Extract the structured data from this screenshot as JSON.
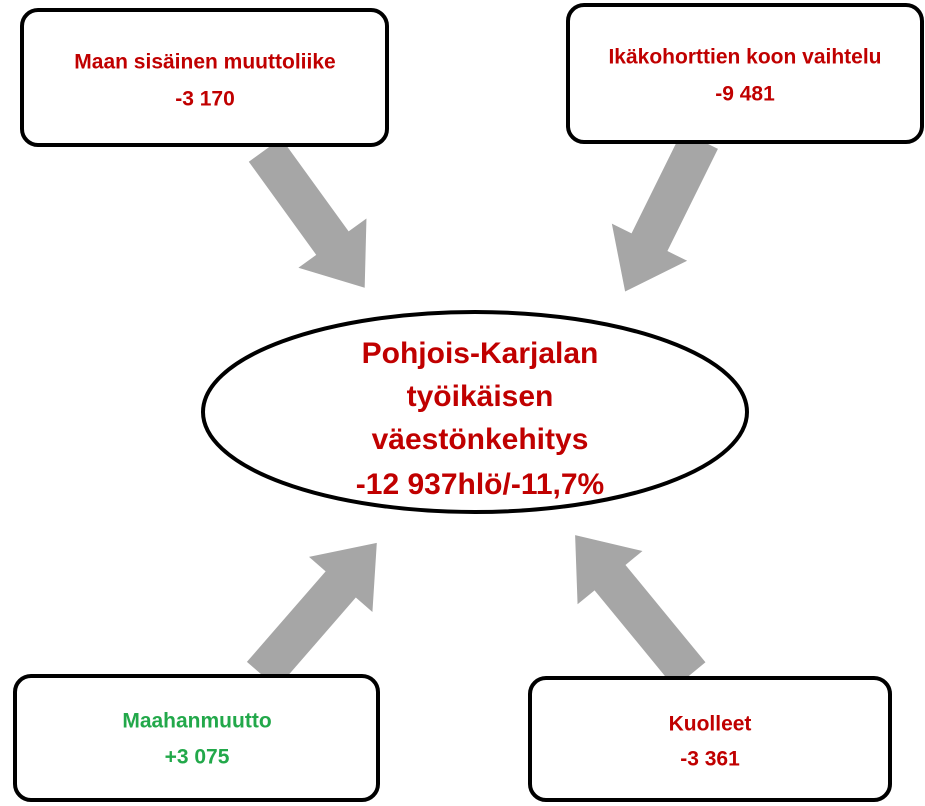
{
  "center": {
    "lines": [
      "Pohjois-Karjalan",
      "työikäisen",
      "väestönkehitys",
      "-12 937hlö/-11,7%"
    ]
  },
  "nodes": [
    {
      "label": "Maan sisäinen muuttoliike",
      "value": "-3 170"
    },
    {
      "label": "Ikäkohorttien koon vaihtelu",
      "value": "-9 481"
    },
    {
      "label": "Maahanmuutto",
      "value": "+3 075"
    },
    {
      "label": "Kuolleet",
      "value": "-3 361"
    }
  ]
}
